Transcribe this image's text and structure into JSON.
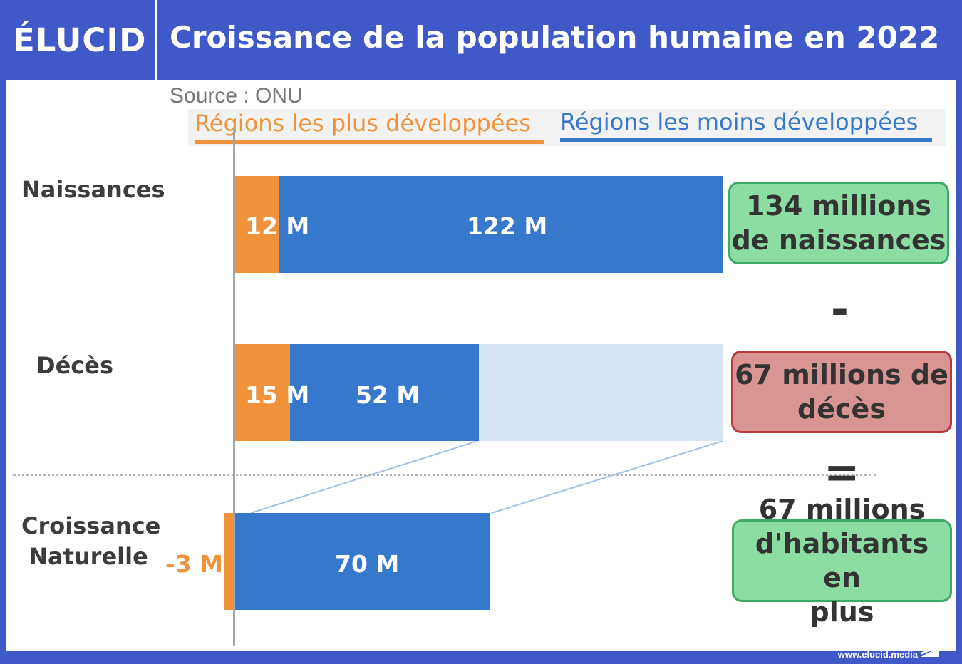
{
  "brand": "ÉLUCID",
  "title": "Croissance de la population humaine en 2022",
  "source": "Source : ONU",
  "legend": {
    "developed": "Régions les plus développées",
    "less_developed": "Régions les moins développées"
  },
  "colors": {
    "developed": "#f0923a",
    "less_developed": "#3679cc",
    "deaths_remainder": "#d7e4f4",
    "positive_box": "#8bdda3",
    "negative_box": "#d99494",
    "header": "#3f5ac8"
  },
  "chart_data": {
    "type": "bar",
    "orientation": "horizontal",
    "stacked": true,
    "categories": [
      "Naissances",
      "Décès",
      "Croissance Naturelle"
    ],
    "series": [
      {
        "name": "Régions les plus développées",
        "values": [
          12,
          15,
          -3
        ]
      },
      {
        "name": "Régions les moins développées",
        "values": [
          122,
          52,
          70
        ]
      }
    ],
    "data_labels": {
      "developed": [
        "12 M",
        "15 M",
        "-3 M"
      ],
      "less_developed": [
        "122 M",
        "52 M",
        "70 M"
      ]
    },
    "totals": [
      134,
      67,
      67
    ],
    "unit": "M"
  },
  "row_labels": {
    "births": "Naissances",
    "deaths": "Décès",
    "growth_line1": "Croissance",
    "growth_line2": "Naturelle"
  },
  "summary": {
    "births_line1": "134 millions",
    "births_line2": "de naissances",
    "minus": "-",
    "deaths_line1": "67 millions de",
    "deaths_line2": "décès",
    "equals": "=",
    "growth_line1": "67 millions",
    "growth_line2": "d'habitants en",
    "growth_line3": "plus"
  },
  "footer": "www.elucid.media"
}
